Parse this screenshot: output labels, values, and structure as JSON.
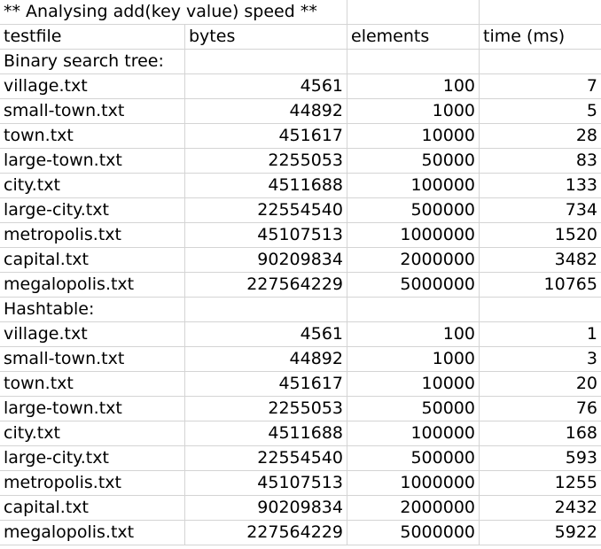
{
  "title": "** Analysing add(key  value) speed **",
  "headers": [
    "testfile",
    "bytes",
    "elements",
    "time (ms)"
  ],
  "sections": [
    {
      "label": "Binary search tree:",
      "rows": [
        {
          "file": "village.txt",
          "bytes": "4561",
          "elements": "100",
          "time": "7"
        },
        {
          "file": "small-town.txt",
          "bytes": "44892",
          "elements": "1000",
          "time": "5"
        },
        {
          "file": "town.txt",
          "bytes": "451617",
          "elements": "10000",
          "time": "28"
        },
        {
          "file": "large-town.txt",
          "bytes": "2255053",
          "elements": "50000",
          "time": "83"
        },
        {
          "file": "city.txt",
          "bytes": "4511688",
          "elements": "100000",
          "time": "133"
        },
        {
          "file": "large-city.txt",
          "bytes": "22554540",
          "elements": "500000",
          "time": "734"
        },
        {
          "file": "metropolis.txt",
          "bytes": "45107513",
          "elements": "1000000",
          "time": "1520"
        },
        {
          "file": "capital.txt",
          "bytes": "90209834",
          "elements": "2000000",
          "time": "3482"
        },
        {
          "file": "megalopolis.txt",
          "bytes": "227564229",
          "elements": "5000000",
          "time": "10765"
        }
      ]
    },
    {
      "label": "Hashtable:",
      "rows": [
        {
          "file": "village.txt",
          "bytes": "4561",
          "elements": "100",
          "time": "1"
        },
        {
          "file": "small-town.txt",
          "bytes": "44892",
          "elements": "1000",
          "time": "3"
        },
        {
          "file": "town.txt",
          "bytes": "451617",
          "elements": "10000",
          "time": "20"
        },
        {
          "file": "large-town.txt",
          "bytes": "2255053",
          "elements": "50000",
          "time": "76"
        },
        {
          "file": "city.txt",
          "bytes": "4511688",
          "elements": "100000",
          "time": "168"
        },
        {
          "file": "large-city.txt",
          "bytes": "22554540",
          "elements": "500000",
          "time": "593"
        },
        {
          "file": "metropolis.txt",
          "bytes": "45107513",
          "elements": "1000000",
          "time": "1255"
        },
        {
          "file": "capital.txt",
          "bytes": "90209834",
          "elements": "2000000",
          "time": "2432"
        },
        {
          "file": "megalopolis.txt",
          "bytes": "227564229",
          "elements": "5000000",
          "time": "5922"
        }
      ]
    }
  ]
}
